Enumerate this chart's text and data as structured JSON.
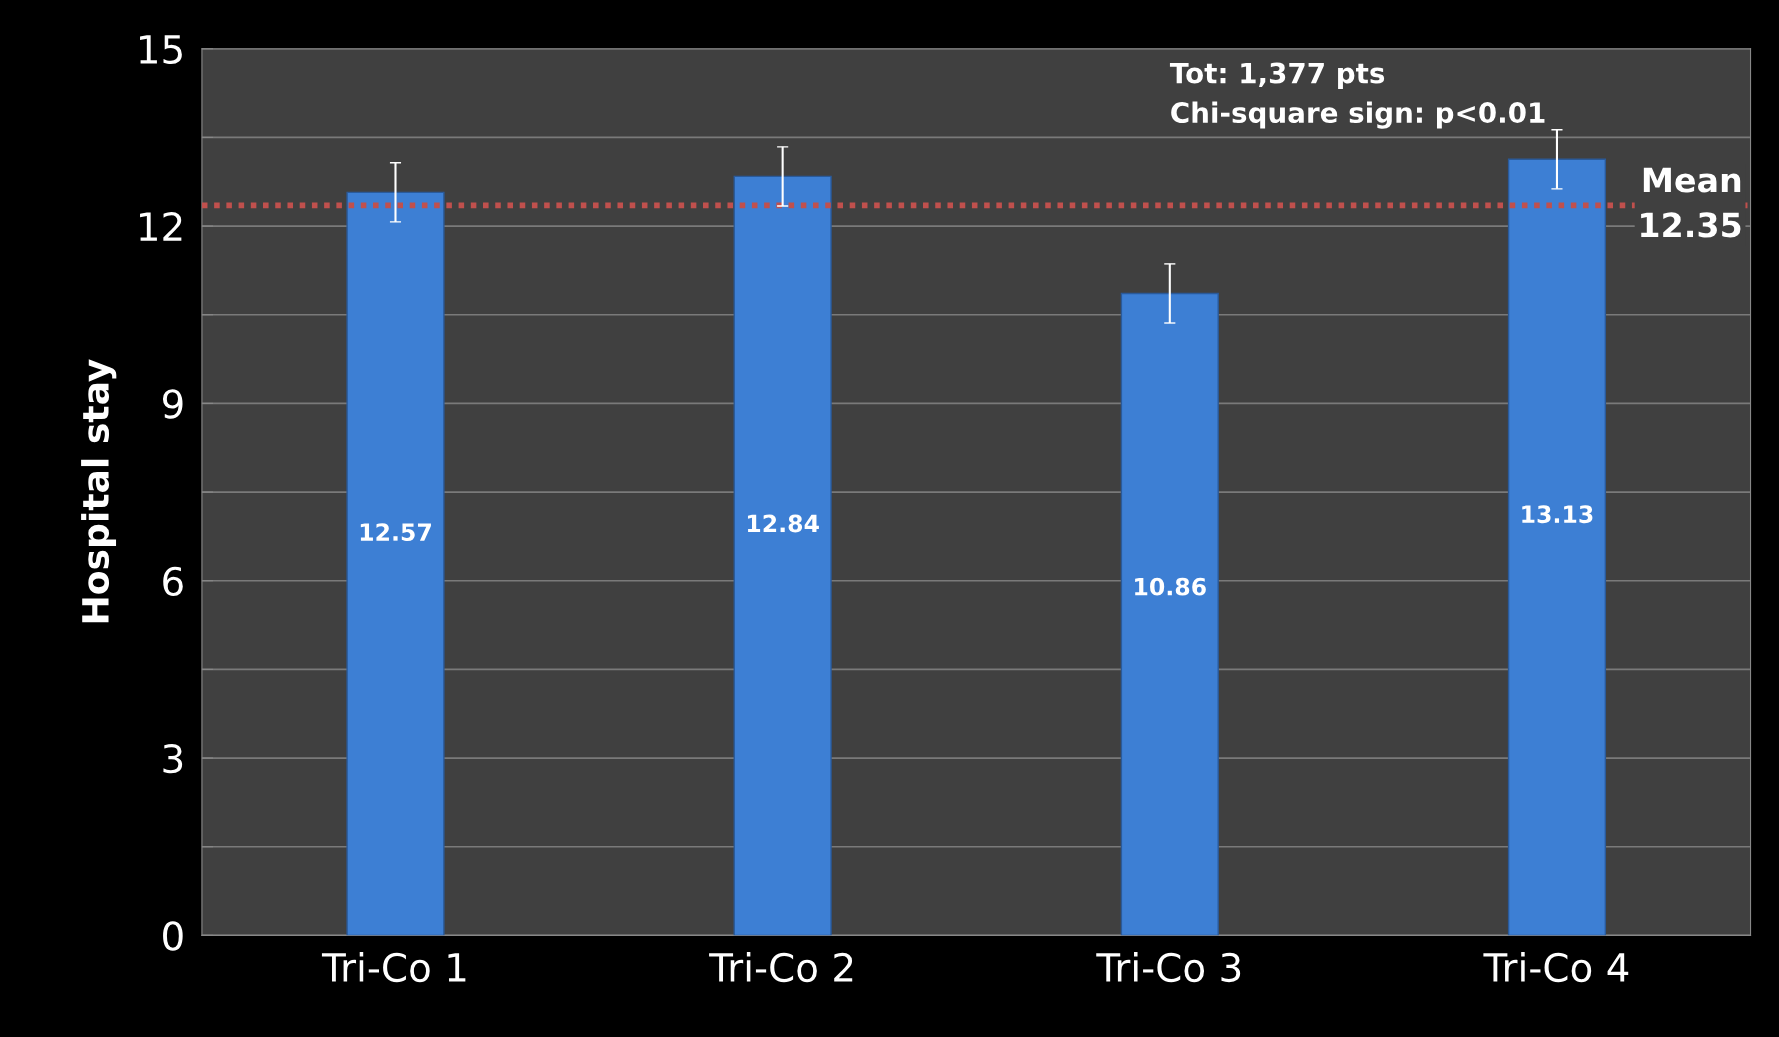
{
  "chart_data": {
    "type": "bar",
    "ylabel": "Hospital stay",
    "categories": [
      "Tri-Co 1",
      "Tri-Co 2",
      "Tri-Co 3",
      "Tri-Co 4"
    ],
    "values": [
      12.57,
      12.84,
      10.86,
      13.13
    ],
    "color": "#3d7fd4",
    "errors": [
      0.5,
      0.5,
      0.5,
      0.5
    ],
    "data_labels": true,
    "ylim": [
      0,
      15
    ],
    "yticks": [
      0,
      {
        "value": 1.5,
        "label": null
      },
      3,
      {
        "value": 4.5,
        "label": null
      },
      6,
      {
        "value": 7.5,
        "label": null
      },
      9,
      {
        "value": 10.5,
        "label": null
      },
      12,
      {
        "value": 13.5,
        "label": null
      },
      15
    ],
    "grid": "y",
    "ref_lines": [
      {
        "axis": "y",
        "value": 12.35,
        "label": "Mean\n12.35",
        "color": "#c0504d",
        "line_style": "dotted"
      }
    ],
    "annotations": [
      "Tot: 1,377 pts\nChi-square sign: p<0.01"
    ]
  }
}
